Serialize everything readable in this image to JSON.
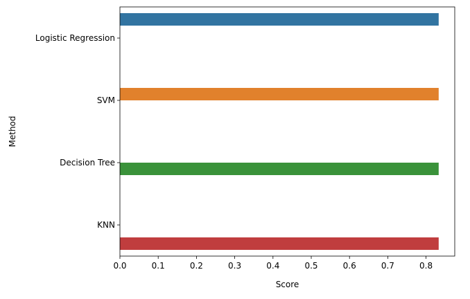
{
  "chart_data": {
    "type": "bar",
    "orientation": "horizontal",
    "categories": [
      "Logistic Regression",
      "SVM",
      "Decision Tree",
      "KNN"
    ],
    "series": [
      {
        "category": "Logistic Regression",
        "value": 0.833,
        "color": "#3274a1"
      },
      {
        "category": "SVM",
        "value": 0.833,
        "color": "#e1812c"
      },
      {
        "category": "Decision Tree",
        "value": 0.833,
        "color": "#3a923a"
      },
      {
        "category": "KNN",
        "value": 0.833,
        "color": "#c03d3e"
      }
    ],
    "xlabel": "Score",
    "ylabel": "Method",
    "xlim": [
      0,
      0.875
    ],
    "xticks": [
      0.0,
      0.1,
      0.2,
      0.3,
      0.4,
      0.5,
      0.6,
      0.7,
      0.8
    ],
    "xtick_labels": [
      "0.0",
      "0.1",
      "0.2",
      "0.3",
      "0.4",
      "0.5",
      "0.6",
      "0.7",
      "0.8"
    ],
    "grid": false,
    "legend": "none"
  }
}
